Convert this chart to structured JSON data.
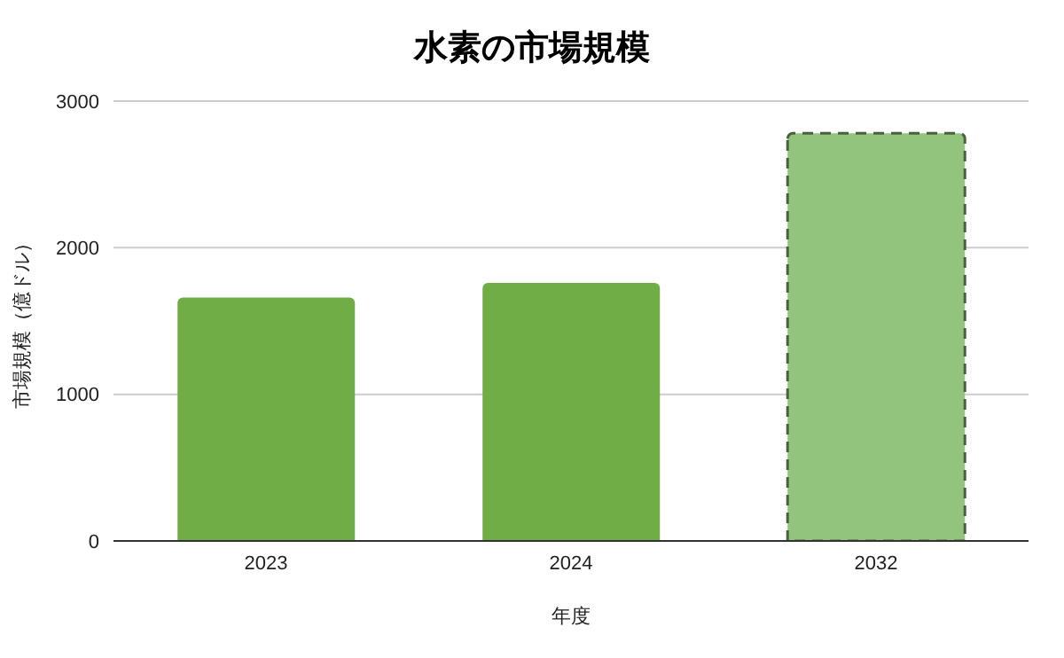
{
  "chart_data": {
    "type": "bar",
    "title": "水素の市場規模",
    "xlabel": "年度",
    "ylabel": "市場規模（億ドル）",
    "categories": [
      "2023",
      "2024",
      "2032"
    ],
    "stacked": true,
    "series": [
      {
        "color": "#70ad47",
        "values": [
          1660,
          1760,
          null
        ]
      },
      {
        "color": "#93c47d",
        "line_style": "dashed",
        "values": [
          null,
          null,
          2780
        ]
      }
    ],
    "ylim": [
      0,
      3000
    ],
    "yticks": [
      0,
      1000,
      2000,
      3000
    ],
    "grid": "y"
  }
}
